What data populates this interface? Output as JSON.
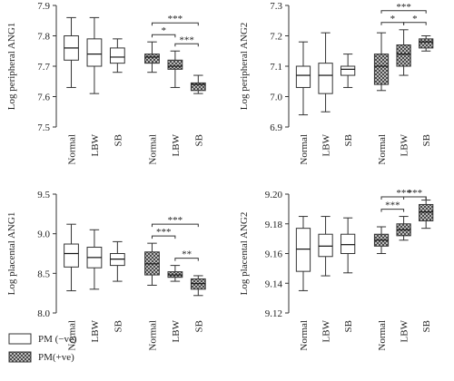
{
  "legend": [
    "PM (−ve)",
    "PM(+ve)"
  ],
  "chart_data": [
    {
      "type": "box",
      "ylabel": "Log peripheral ANG1",
      "categories": [
        "Normal",
        "LBW",
        "SB",
        "Normal",
        "LBW",
        "SB"
      ],
      "hatched": [
        false,
        false,
        false,
        true,
        true,
        true
      ],
      "boxes": [
        {
          "min": 7.63,
          "q1": 7.72,
          "median": 7.76,
          "q3": 7.8,
          "max": 7.86
        },
        {
          "min": 7.61,
          "q1": 7.7,
          "median": 7.74,
          "q3": 7.79,
          "max": 7.86
        },
        {
          "min": 7.68,
          "q1": 7.71,
          "median": 7.73,
          "q3": 7.76,
          "max": 7.79
        },
        {
          "min": 7.68,
          "q1": 7.71,
          "median": 7.73,
          "q3": 7.74,
          "max": 7.78
        },
        {
          "min": 7.63,
          "q1": 7.69,
          "median": 7.7,
          "q3": 7.72,
          "max": 7.75
        },
        {
          "min": 7.61,
          "q1": 7.62,
          "median": 7.64,
          "q3": 7.645,
          "max": 7.67
        }
      ],
      "annotations": [
        {
          "from": 3,
          "to": 4,
          "label": "*"
        },
        {
          "from": 4,
          "to": 5,
          "label": "***"
        },
        {
          "from": 3,
          "to": 5,
          "label": "***"
        }
      ],
      "ylim": [
        7.5,
        7.9
      ],
      "yticks": [
        7.5,
        7.6,
        7.7,
        7.8,
        7.9
      ]
    },
    {
      "type": "box",
      "ylabel": "Log peripheral ANG2",
      "categories": [
        "Normal",
        "LBW",
        "SB",
        "Normal",
        "LBW",
        "SB"
      ],
      "hatched": [
        false,
        false,
        false,
        true,
        true,
        true
      ],
      "boxes": [
        {
          "min": 6.94,
          "q1": 7.03,
          "median": 7.07,
          "q3": 7.1,
          "max": 7.18
        },
        {
          "min": 6.95,
          "q1": 7.01,
          "median": 7.07,
          "q3": 7.11,
          "max": 7.21
        },
        {
          "min": 7.03,
          "q1": 7.07,
          "median": 7.09,
          "q3": 7.1,
          "max": 7.14
        },
        {
          "min": 7.02,
          "q1": 7.04,
          "median": 7.1,
          "q3": 7.14,
          "max": 7.21
        },
        {
          "min": 7.07,
          "q1": 7.1,
          "median": 7.14,
          "q3": 7.17,
          "max": 7.22
        },
        {
          "min": 7.15,
          "q1": 7.16,
          "median": 7.18,
          "q3": 7.19,
          "max": 7.2
        }
      ],
      "annotations": [
        {
          "from": 3,
          "to": 4,
          "label": "*"
        },
        {
          "from": 4,
          "to": 5,
          "label": "*"
        },
        {
          "from": 3,
          "to": 5,
          "label": "***"
        }
      ],
      "ylim": [
        6.9,
        7.3
      ],
      "yticks": [
        6.9,
        {
          "value": 7.0,
          "label": "7.0"
        },
        7.1,
        7.2,
        7.3
      ]
    },
    {
      "type": "box",
      "ylabel": "Log placental ANG1",
      "categories": [
        "Normal",
        "LBW",
        "SB",
        "Normal",
        "LBW",
        "SB"
      ],
      "hatched": [
        false,
        false,
        false,
        true,
        true,
        true
      ],
      "boxes": [
        {
          "min": 8.28,
          "q1": 8.58,
          "median": 8.75,
          "q3": 8.87,
          "max": 9.12
        },
        {
          "min": 8.3,
          "q1": 8.57,
          "median": 8.7,
          "q3": 8.83,
          "max": 9.05
        },
        {
          "min": 8.4,
          "q1": 8.6,
          "median": 8.68,
          "q3": 8.75,
          "max": 8.9
        },
        {
          "min": 8.35,
          "q1": 8.48,
          "median": 8.62,
          "q3": 8.77,
          "max": 8.88
        },
        {
          "min": 8.4,
          "q1": 8.45,
          "median": 8.48,
          "q3": 8.52,
          "max": 8.6
        },
        {
          "min": 8.22,
          "q1": 8.3,
          "median": 8.37,
          "q3": 8.43,
          "max": 8.47
        }
      ],
      "annotations": [
        {
          "from": 3,
          "to": 4,
          "label": "***"
        },
        {
          "from": 4,
          "to": 5,
          "label": "**"
        },
        {
          "from": 3,
          "to": 5,
          "label": "***"
        }
      ],
      "ylim": [
        8.0,
        9.5
      ],
      "yticks": [
        {
          "value": 8.0,
          "label": "8.0"
        },
        8.5,
        {
          "value": 9.0,
          "label": "9.0"
        },
        9.5
      ]
    },
    {
      "type": "box",
      "ylabel": "Log placental ANG2",
      "categories": [
        "Normal",
        "LBW",
        "SB",
        "Normal",
        "LBW",
        "SB"
      ],
      "hatched": [
        false,
        false,
        false,
        true,
        true,
        true
      ],
      "boxes": [
        {
          "min": 9.135,
          "q1": 9.148,
          "median": 9.163,
          "q3": 9.177,
          "max": 9.185
        },
        {
          "min": 9.145,
          "q1": 9.158,
          "median": 9.165,
          "q3": 9.173,
          "max": 9.185
        },
        {
          "min": 9.147,
          "q1": 9.16,
          "median": 9.166,
          "q3": 9.173,
          "max": 9.184
        },
        {
          "min": 9.16,
          "q1": 9.165,
          "median": 9.169,
          "q3": 9.173,
          "max": 9.178
        },
        {
          "min": 9.169,
          "q1": 9.172,
          "median": 9.176,
          "q3": 9.18,
          "max": 9.185
        },
        {
          "min": 9.177,
          "q1": 9.182,
          "median": 9.188,
          "q3": 9.193,
          "max": 9.196
        }
      ],
      "annotations": [
        {
          "from": 3,
          "to": 4,
          "label": "***"
        },
        {
          "from": 4,
          "to": 5,
          "label": "***"
        },
        {
          "from": 3,
          "to": 5,
          "label": "***"
        }
      ],
      "ylim": [
        9.12,
        9.2
      ],
      "yticks": [
        9.12,
        9.14,
        9.16,
        9.18,
        {
          "value": 9.2,
          "label": "9.20"
        }
      ]
    }
  ]
}
